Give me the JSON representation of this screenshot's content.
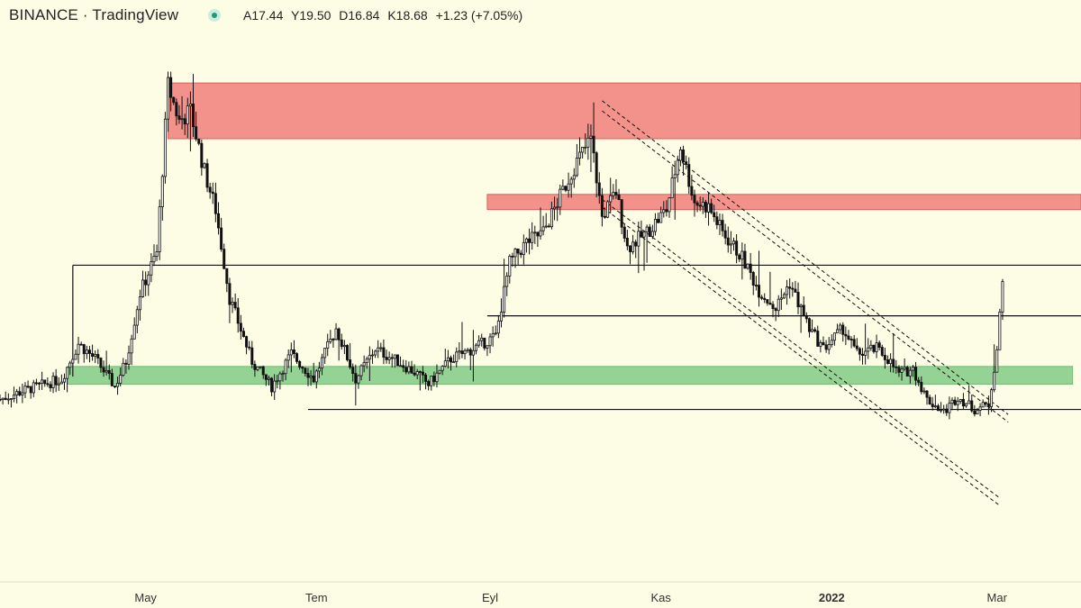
{
  "header": {
    "exchange": "BINANCE",
    "separator": "·",
    "platform": "TradingView",
    "ohlc": {
      "open": "A17.44",
      "high": "Y19.50",
      "low": "D16.84",
      "close": "K18.68",
      "change": "+1.23 (+7.05%)"
    }
  },
  "colors": {
    "background": "#fdfce4",
    "resistance_zone": "#f28b86",
    "support_zone": "#8fd18f",
    "line": "#111111",
    "candle": "#111111"
  },
  "chart_data": {
    "type": "candlestick",
    "x_tick_labels": [
      "May",
      "Tem",
      "Eyl",
      "Kas",
      "2022",
      "Mar"
    ],
    "x_range": [
      "2021-03-10",
      "2022-03-31"
    ],
    "y_range": [
      5.0,
      26.5
    ],
    "grid": false,
    "price_path": [
      [
        "2021-03-10",
        12.0
      ],
      [
        "2021-03-20",
        12.4
      ],
      [
        "2021-04-01",
        12.8
      ],
      [
        "2021-04-07",
        14.2
      ],
      [
        "2021-04-13",
        13.6
      ],
      [
        "2021-04-20",
        12.5
      ],
      [
        "2021-04-24",
        13.5
      ],
      [
        "2021-04-29",
        16.2
      ],
      [
        "2021-05-05",
        17.8
      ],
      [
        "2021-05-09",
        24.4
      ],
      [
        "2021-05-13",
        23.0
      ],
      [
        "2021-05-17",
        23.4
      ],
      [
        "2021-05-22",
        21.0
      ],
      [
        "2021-05-26",
        19.5
      ],
      [
        "2021-05-31",
        16.0
      ],
      [
        "2021-06-08",
        13.5
      ],
      [
        "2021-06-15",
        12.5
      ],
      [
        "2021-06-22",
        13.8
      ],
      [
        "2021-06-30",
        12.8
      ],
      [
        "2021-07-08",
        14.8
      ],
      [
        "2021-07-15",
        12.8
      ],
      [
        "2021-07-22",
        14.0
      ],
      [
        "2021-07-30",
        13.5
      ],
      [
        "2021-08-06",
        13.0
      ],
      [
        "2021-08-10",
        12.6
      ],
      [
        "2021-08-18",
        13.6
      ],
      [
        "2021-08-26",
        14.0
      ],
      [
        "2021-09-03",
        14.5
      ],
      [
        "2021-09-08",
        17.4
      ],
      [
        "2021-09-14",
        18.2
      ],
      [
        "2021-09-20",
        18.6
      ],
      [
        "2021-09-26",
        20.0
      ],
      [
        "2021-10-01",
        21.2
      ],
      [
        "2021-10-07",
        22.3
      ],
      [
        "2021-10-11",
        19.2
      ],
      [
        "2021-10-16",
        20.2
      ],
      [
        "2021-10-20",
        18.0
      ],
      [
        "2021-10-27",
        18.6
      ],
      [
        "2021-11-03",
        19.5
      ],
      [
        "2021-11-08",
        22.0
      ],
      [
        "2021-11-13",
        19.8
      ],
      [
        "2021-11-18",
        19.6
      ],
      [
        "2021-11-23",
        18.6
      ],
      [
        "2021-11-30",
        17.6
      ],
      [
        "2021-12-06",
        16.3
      ],
      [
        "2021-12-12",
        15.6
      ],
      [
        "2021-12-17",
        16.6
      ],
      [
        "2021-12-24",
        14.8
      ],
      [
        "2021-12-29",
        14.0
      ],
      [
        "2022-01-05",
        14.8
      ],
      [
        "2022-01-10",
        13.8
      ],
      [
        "2022-01-17",
        14.0
      ],
      [
        "2022-01-21",
        13.6
      ],
      [
        "2022-01-25",
        13.0
      ],
      [
        "2022-01-30",
        13.2
      ],
      [
        "2022-02-04",
        12.0
      ],
      [
        "2022-02-10",
        11.5
      ],
      [
        "2022-02-15",
        12.1
      ],
      [
        "2022-02-21",
        11.6
      ],
      [
        "2022-02-26",
        11.8
      ],
      [
        "2022-03-01",
        14.0
      ],
      [
        "2022-03-03",
        16.6
      ]
    ],
    "zones": [
      {
        "kind": "resistance",
        "from": "2021-05-09",
        "to": "2022-03-31",
        "low": 22.3,
        "high": 24.5
      },
      {
        "kind": "resistance",
        "from": "2021-08-31",
        "to": "2022-03-31",
        "low": 19.5,
        "high": 20.1
      },
      {
        "kind": "support",
        "from": "2021-04-03",
        "to": "2022-03-28",
        "low": 12.6,
        "high": 13.3
      }
    ],
    "horizontal_lines": [
      {
        "from": "2021-04-05",
        "to": "2022-03-31",
        "y": 17.3
      },
      {
        "from": "2021-08-31",
        "to": "2022-03-31",
        "y": 15.3
      },
      {
        "from": "2021-06-28",
        "to": "2022-03-31",
        "y": 11.6
      }
    ],
    "range_box_edge": {
      "x": "2021-04-05",
      "from_y": 12.9,
      "to_y": 17.3
    },
    "channel_lines": [
      {
        "from": [
          "2021-10-11",
          23.8
        ],
        "to": [
          "2022-03-05",
          11.4
        ]
      },
      {
        "from": [
          "2021-10-11",
          23.4
        ],
        "to": [
          "2022-03-05",
          11.1
        ]
      },
      {
        "from": [
          "2021-10-11",
          19.9
        ],
        "to": [
          "2022-03-02",
          8.1
        ]
      },
      {
        "from": [
          "2021-10-11",
          19.6
        ],
        "to": [
          "2022-03-02",
          7.8
        ]
      }
    ]
  }
}
